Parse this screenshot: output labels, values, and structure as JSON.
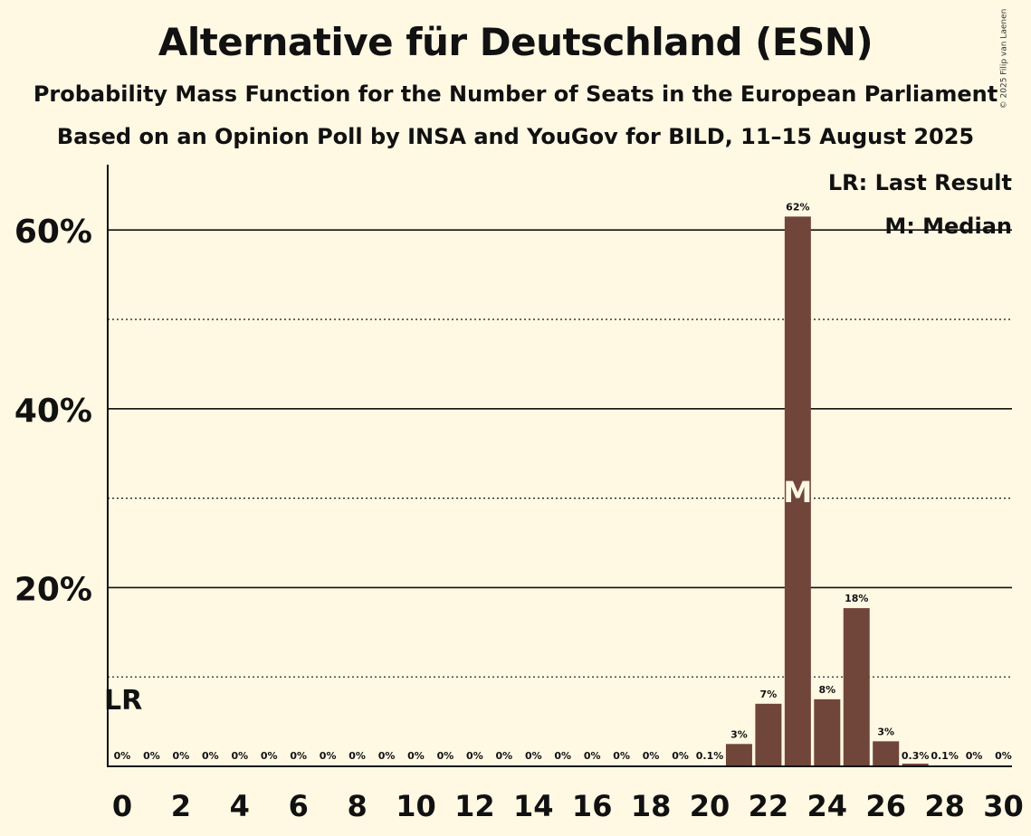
{
  "title": "Alternative für Deutschland (ESN)",
  "subtitle": "Probability Mass Function for the Number of Seats in the European Parliament",
  "subtitle2": "Based on an Opinion Poll by INSA and YouGov for BILD, 11–15 August 2025",
  "copyright": "© 2025 Filip van Laenen",
  "legend": {
    "last_result": "LR: Last Result",
    "median": "M: Median"
  },
  "markers": {
    "last_result_label": "LR",
    "last_result_seats": 0,
    "median_label": "M",
    "median_seats": 23
  },
  "colors": {
    "bar": "#70463a",
    "background": "#fff8e3"
  },
  "chart_data": {
    "type": "bar",
    "x": [
      0,
      1,
      2,
      3,
      4,
      5,
      6,
      7,
      8,
      9,
      10,
      11,
      12,
      13,
      14,
      15,
      16,
      17,
      18,
      19,
      20,
      21,
      22,
      23,
      24,
      25,
      26,
      27,
      28,
      29,
      30
    ],
    "values": [
      0,
      0,
      0,
      0,
      0,
      0,
      0,
      0,
      0,
      0,
      0,
      0,
      0,
      0,
      0,
      0,
      0,
      0,
      0,
      0,
      0.1,
      2.5,
      7.0,
      61.5,
      7.5,
      17.7,
      2.8,
      0.3,
      0.1,
      0,
      0
    ],
    "data_labels": [
      "0%",
      "0%",
      "0%",
      "0%",
      "0%",
      "0%",
      "0%",
      "0%",
      "0%",
      "0%",
      "0%",
      "0%",
      "0%",
      "0%",
      "0%",
      "0%",
      "0%",
      "0%",
      "0%",
      "0%",
      "0.1%",
      "3%",
      "7%",
      "62%",
      "8%",
      "18%",
      "3%",
      "0.3%",
      "0.1%",
      "0%",
      "0%"
    ],
    "x_tick_labels": [
      "0",
      "2",
      "4",
      "6",
      "8",
      "10",
      "12",
      "14",
      "16",
      "18",
      "20",
      "22",
      "24",
      "26",
      "28",
      "30"
    ],
    "y_tick_labels": [
      "20%",
      "40%",
      "60%"
    ],
    "y_ticks": [
      20,
      40,
      60
    ],
    "y_minor_gridlines": [
      10,
      30,
      50
    ],
    "ylim": [
      0,
      67
    ],
    "xlabel": "",
    "ylabel": "",
    "grid": true,
    "legend_position": "top-right"
  }
}
